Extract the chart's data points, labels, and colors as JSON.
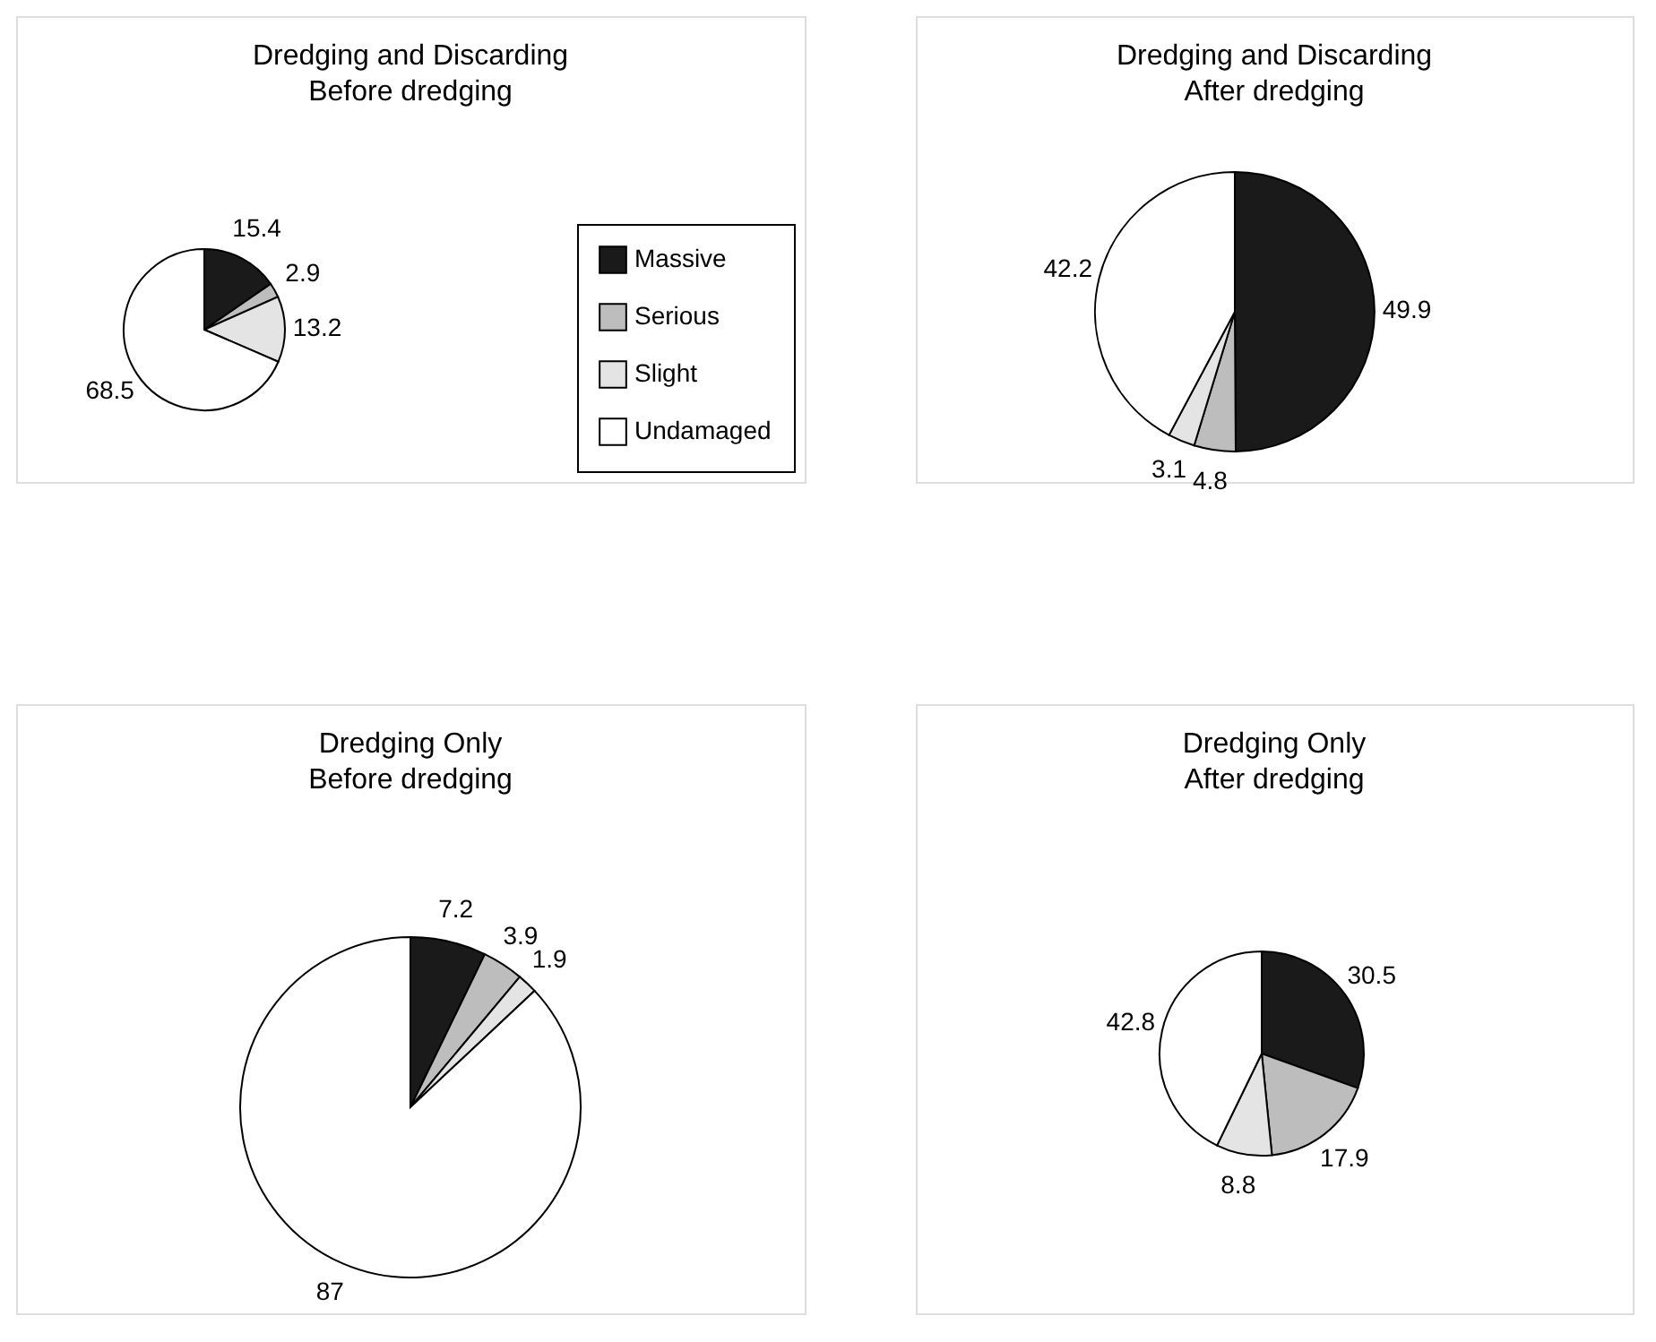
{
  "chart_data": [
    {
      "type": "pie",
      "title": "Dredging and Discarding",
      "subtitle": "Before dredging",
      "categories": [
        "Massive",
        "Serious",
        "Slight",
        "Undamaged"
      ],
      "values": [
        15.4,
        2.9,
        13.2,
        68.5
      ],
      "colors": [
        "#1a1a1a",
        "#bdbdbd",
        "#e4e4e4",
        "#ffffff"
      ],
      "data_labels": true,
      "legend": "bottom right"
    },
    {
      "type": "pie",
      "title": "Dredging and Discarding",
      "subtitle": "After dredging",
      "categories": [
        null,
        null,
        null,
        null
      ],
      "values": [
        49.9,
        4.8,
        3.1,
        42.2
      ],
      "colors": [
        "#1a1a1a",
        "#bdbdbd",
        "#e4e4e4",
        "#ffffff"
      ],
      "data_labels": true
    },
    {
      "type": "pie",
      "title": "Dredging Only",
      "subtitle": "Before dredging",
      "categories": [
        null,
        null,
        null,
        null
      ],
      "values": [
        7.2,
        3.9,
        1.9,
        87
      ],
      "colors": [
        "#1a1a1a",
        "#bdbdbd",
        "#e4e4e4",
        "#ffffff"
      ],
      "data_labels": true
    },
    {
      "type": "pie",
      "title": "Dredging Only",
      "subtitle": "After dredging",
      "categories": [
        null,
        null,
        null,
        null
      ],
      "values": [
        30.5,
        17.9,
        8.8,
        42.8
      ],
      "colors": [
        "#1a1a1a",
        "#bdbdbd",
        "#e4e4e4",
        "#ffffff"
      ],
      "data_labels": true
    }
  ]
}
